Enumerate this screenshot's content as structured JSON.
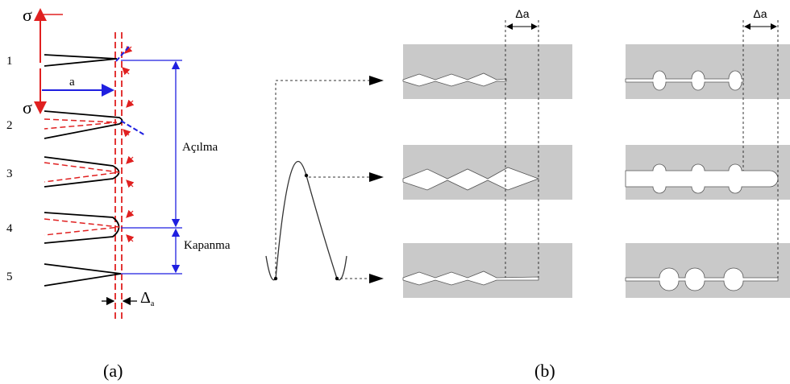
{
  "panel_a": {
    "stress_labels": [
      "σ",
      "σ"
    ],
    "steps": [
      "1",
      "2",
      "3",
      "4",
      "5"
    ],
    "crack_length": "a",
    "opening": "Açılma",
    "closing": "Kapanma",
    "delta": {
      "symbol": "Δ",
      "subscript": "a"
    },
    "caption": "(a)"
  },
  "panel_b": {
    "delta_labels": [
      "Δa",
      "Δa"
    ],
    "caption": "(b)"
  }
}
